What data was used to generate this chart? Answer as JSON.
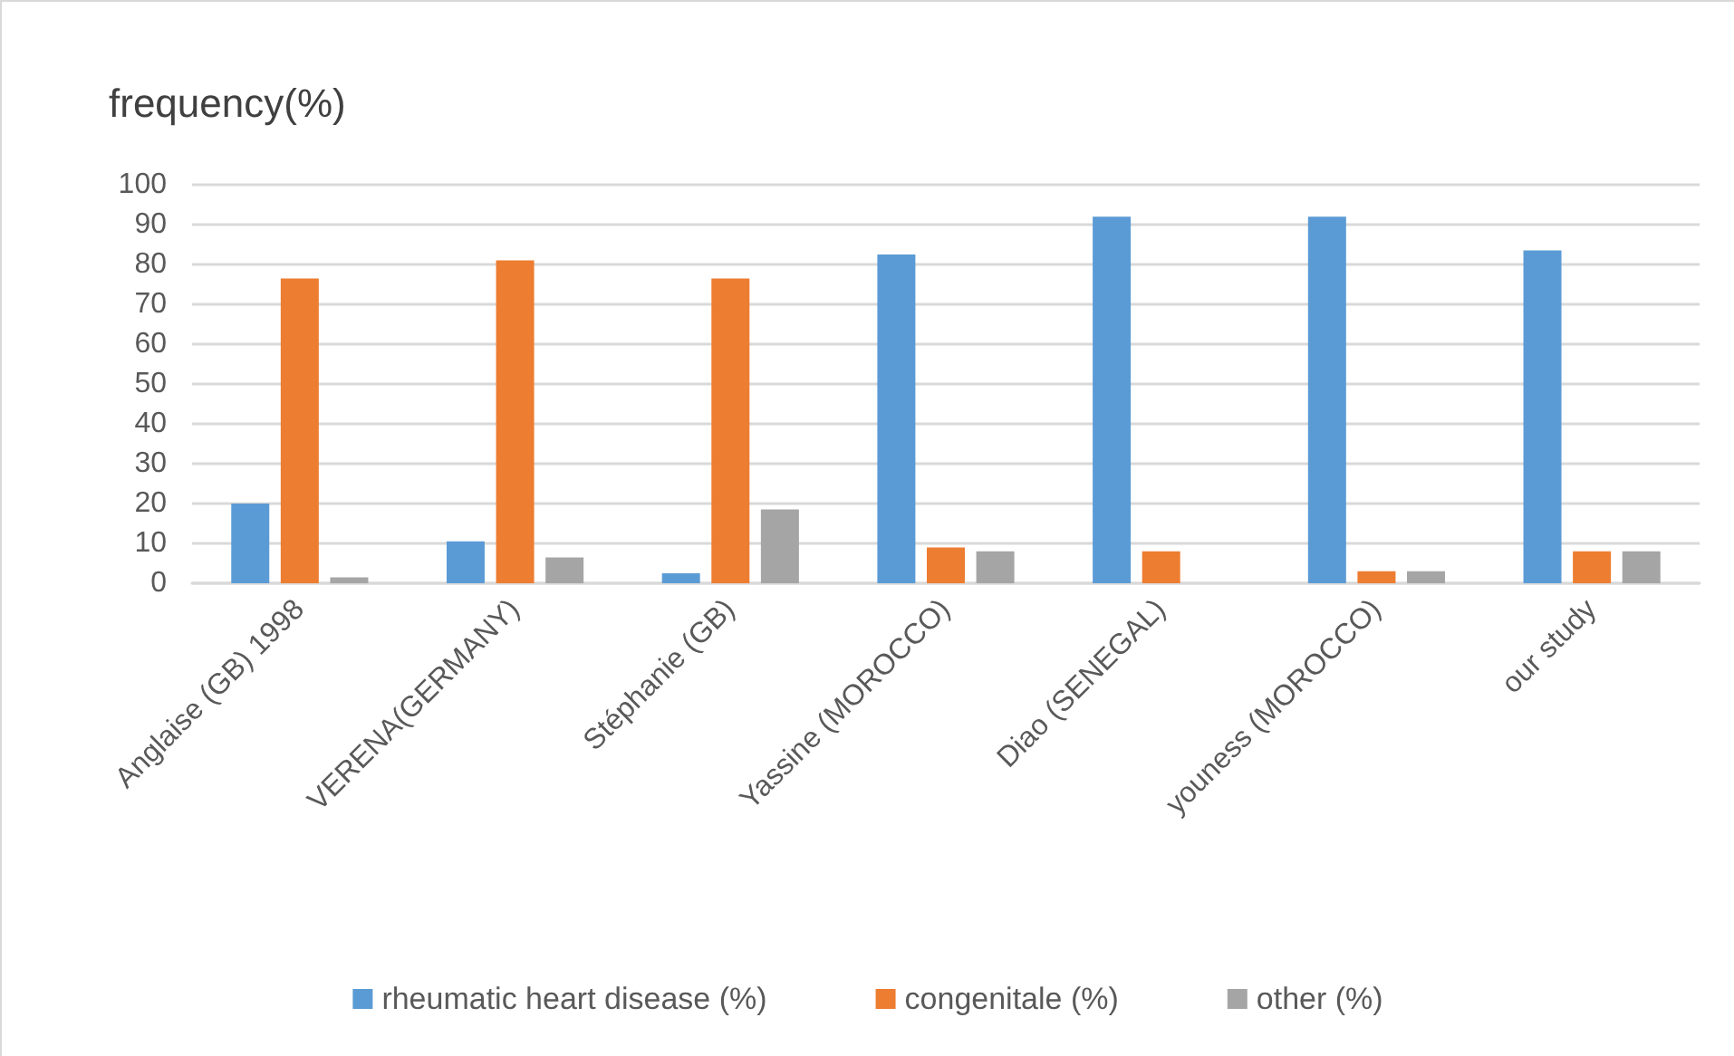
{
  "chart_data": {
    "type": "bar",
    "ylabel": "frequency(%)",
    "categories": [
      "Anglaise (GB) 1998",
      "VERENA(GERMANY)",
      "Stéphanie (GB)",
      "Yassine (MOROCCO)",
      "Diao (SENEGAL)",
      "youness (MOROCCO)",
      "our study"
    ],
    "series": [
      {
        "name": "rheumatic heart disease (%)",
        "color": "#5b9bd5",
        "values": [
          20,
          10.5,
          2.5,
          82.5,
          92,
          92,
          83.5
        ]
      },
      {
        "name": "congenitale (%)",
        "color": "#ed7d31",
        "values": [
          76.5,
          81,
          76.5,
          9,
          8,
          3,
          8
        ]
      },
      {
        "name": "other (%)",
        "color": "#a5a5a5",
        "values": [
          1.5,
          6.5,
          18.5,
          8,
          null,
          3,
          8
        ]
      }
    ],
    "ylim": [
      0,
      100
    ],
    "yticks": [
      0,
      10,
      20,
      30,
      40,
      50,
      60,
      70,
      80,
      90,
      100
    ],
    "grid": "y",
    "legend": "bottom"
  }
}
